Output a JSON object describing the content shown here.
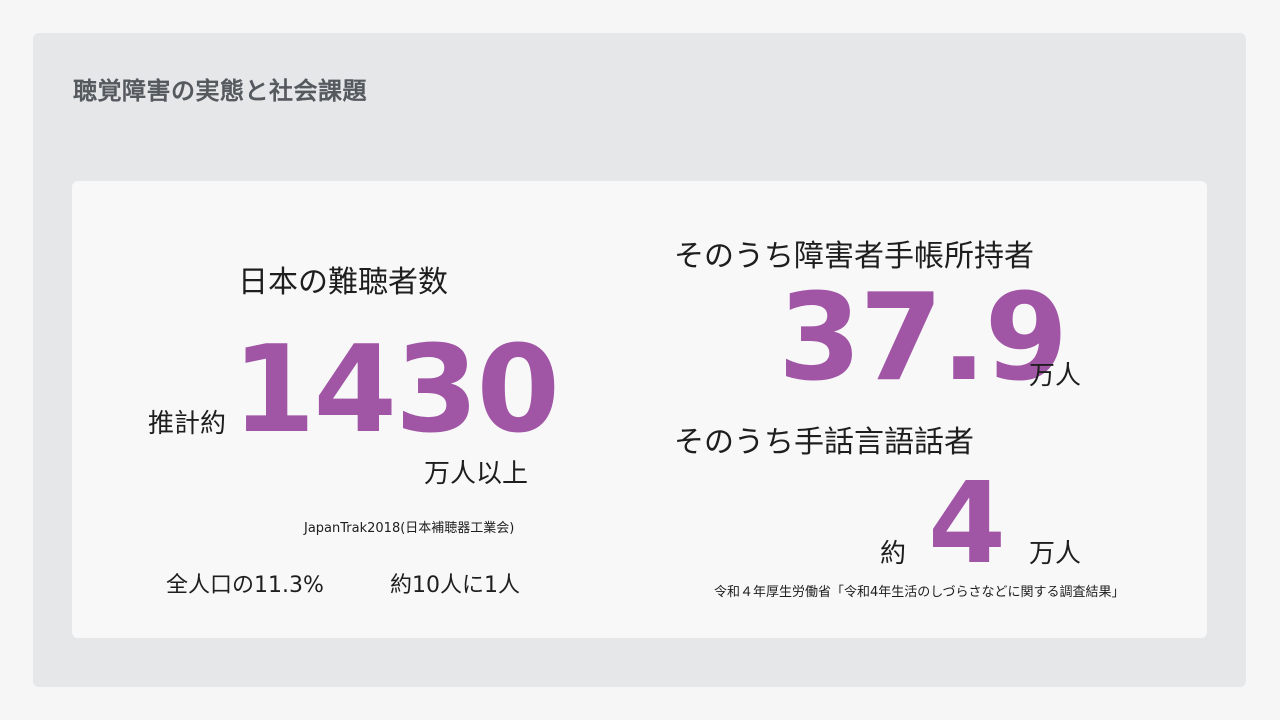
{
  "page": {
    "title": "聴覚障害の実態と社会課題"
  },
  "left": {
    "heading": "日本の難聴者数",
    "prefix": "推計約",
    "value": "1430",
    "unit": "万人以上",
    "source": "JapanTrak2018(日本補聴器工業会)",
    "stat1": "全人口の11.3%",
    "stat2": "約10人に1人"
  },
  "right": {
    "heading1": "そのうち障害者手帳所持者",
    "value1": "37.9",
    "unit1": "万人",
    "heading2": "そのうち手話言語話者",
    "prefix2": "約",
    "value2": "4",
    "unit2": "万人",
    "source": "令和４年厚生労働省「令和4年生活のしづらさなどに関する調査結果」"
  },
  "colors": {
    "accent": "#a055a5",
    "outer_bg": "#e6e7e9",
    "panel_bg": "#f8f8f9",
    "title": "#555a5f"
  }
}
